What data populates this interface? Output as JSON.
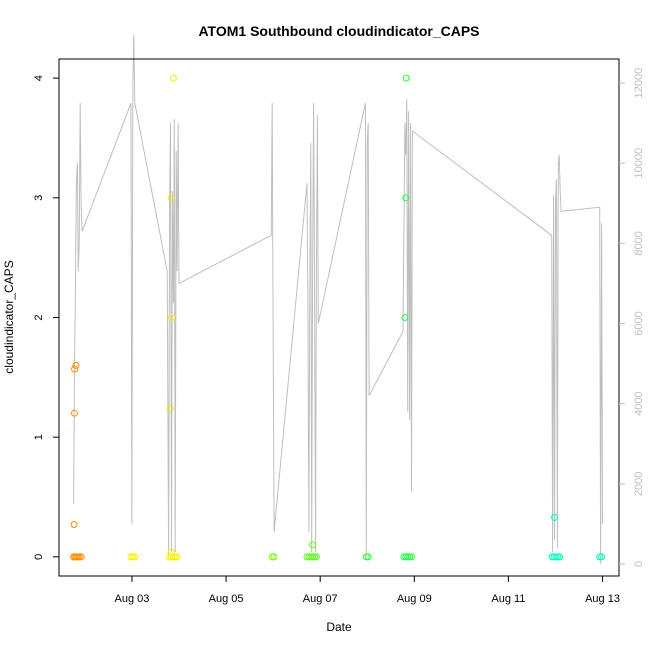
{
  "chart_data": {
    "type": "scatter",
    "title": "ATOM1 Southbound cloudindicator_CAPS",
    "xlabel": "Date",
    "ylabel": "cloudindicator_CAPS",
    "x_ticks": [
      "Aug 03",
      "Aug 05",
      "Aug 07",
      "Aug 09",
      "Aug 11",
      "Aug 13"
    ],
    "x_tick_days": [
      3,
      5,
      7,
      9,
      11,
      13
    ],
    "xlim": [
      1.45,
      13.35
    ],
    "ylim": [
      -0.16,
      4.16
    ],
    "y_ticks": [
      0,
      1,
      2,
      3,
      4
    ],
    "y2lim": [
      -300,
      12600
    ],
    "y2_ticks": [
      0,
      2000,
      4000,
      6000,
      8000,
      10000,
      12000
    ],
    "grid": false,
    "points": [
      {
        "x": 1.76,
        "y": 0,
        "color": "#ff8c00"
      },
      {
        "x": 1.79,
        "y": 0,
        "color": "#ff8c00"
      },
      {
        "x": 1.82,
        "y": 0,
        "color": "#ff8c00"
      },
      {
        "x": 1.85,
        "y": 0,
        "color": "#ff8c00"
      },
      {
        "x": 1.88,
        "y": 0,
        "color": "#ff8c00"
      },
      {
        "x": 1.92,
        "y": 0,
        "color": "#ff8c00"
      },
      {
        "x": 1.77,
        "y": 0.27,
        "color": "#ff8c00"
      },
      {
        "x": 1.78,
        "y": 1.2,
        "color": "#ff8c00"
      },
      {
        "x": 1.78,
        "y": 1.57,
        "color": "#ff8c00"
      },
      {
        "x": 1.81,
        "y": 1.6,
        "color": "#ff8c00"
      },
      {
        "x": 2.98,
        "y": 0,
        "color": "#f5f000"
      },
      {
        "x": 3.02,
        "y": 0,
        "color": "#f5f000"
      },
      {
        "x": 3.06,
        "y": 0,
        "color": "#f5f000"
      },
      {
        "x": 3.8,
        "y": 0,
        "color": "#f5f000"
      },
      {
        "x": 3.84,
        "y": 0,
        "color": "#f5f000"
      },
      {
        "x": 3.88,
        "y": 0,
        "color": "#f5f000"
      },
      {
        "x": 3.92,
        "y": 0,
        "color": "#f5f000"
      },
      {
        "x": 3.96,
        "y": 0,
        "color": "#f5f000"
      },
      {
        "x": 3.83,
        "y": 0.04,
        "color": "#f5f000"
      },
      {
        "x": 3.81,
        "y": 1.24,
        "color": "#f5f000"
      },
      {
        "x": 3.84,
        "y": 2.0,
        "color": "#f5f000"
      },
      {
        "x": 3.83,
        "y": 3.0,
        "color": "#f5f000"
      },
      {
        "x": 3.88,
        "y": 4.0,
        "color": "#f5f000"
      },
      {
        "x": 5.98,
        "y": 0,
        "color": "#7fff00"
      },
      {
        "x": 6.02,
        "y": 0,
        "color": "#7fff00"
      },
      {
        "x": 6.72,
        "y": 0,
        "color": "#5aff1a"
      },
      {
        "x": 6.76,
        "y": 0,
        "color": "#5aff1a"
      },
      {
        "x": 6.8,
        "y": 0,
        "color": "#5aff1a"
      },
      {
        "x": 6.84,
        "y": 0,
        "color": "#5aff1a"
      },
      {
        "x": 6.88,
        "y": 0,
        "color": "#5aff1a"
      },
      {
        "x": 6.92,
        "y": 0,
        "color": "#5aff1a"
      },
      {
        "x": 6.84,
        "y": 0.1,
        "color": "#5aff1a"
      },
      {
        "x": 7.98,
        "y": 0,
        "color": "#33ff33"
      },
      {
        "x": 8.02,
        "y": 0,
        "color": "#33ff33"
      },
      {
        "x": 8.78,
        "y": 0,
        "color": "#22ff44"
      },
      {
        "x": 8.82,
        "y": 0,
        "color": "#22ff44"
      },
      {
        "x": 8.86,
        "y": 0,
        "color": "#22ff44"
      },
      {
        "x": 8.9,
        "y": 0,
        "color": "#22ff44"
      },
      {
        "x": 8.94,
        "y": 0,
        "color": "#22ff44"
      },
      {
        "x": 8.8,
        "y": 2.0,
        "color": "#22ff44"
      },
      {
        "x": 8.82,
        "y": 3.0,
        "color": "#22ff44"
      },
      {
        "x": 8.83,
        "y": 4.0,
        "color": "#22ff44"
      },
      {
        "x": 11.93,
        "y": 0,
        "color": "#00ffc0"
      },
      {
        "x": 11.97,
        "y": 0,
        "color": "#00ffc0"
      },
      {
        "x": 12.01,
        "y": 0,
        "color": "#00ffc0"
      },
      {
        "x": 12.05,
        "y": 0,
        "color": "#00ffc0"
      },
      {
        "x": 12.09,
        "y": 0,
        "color": "#00ffc0"
      },
      {
        "x": 11.98,
        "y": 0.33,
        "color": "#00ffc0"
      },
      {
        "x": 12.94,
        "y": 0,
        "color": "#00ffc8"
      },
      {
        "x": 12.98,
        "y": 0,
        "color": "#00ffc8"
      }
    ],
    "secondary_line": {
      "color": "#bebebe",
      "x": [
        1.76,
        1.78,
        1.8,
        1.82,
        1.84,
        1.86,
        1.88,
        1.9,
        1.92,
        1.94,
        2.98,
        3.0,
        3.02,
        3.04,
        3.06,
        3.75,
        3.78,
        3.8,
        3.82,
        3.84,
        3.86,
        3.88,
        3.9,
        3.92,
        3.94,
        3.96,
        3.98,
        4.0,
        5.96,
        5.98,
        6.0,
        6.02,
        6.72,
        6.74,
        6.76,
        6.78,
        6.8,
        6.82,
        6.84,
        6.86,
        6.88,
        6.9,
        6.92,
        6.94,
        6.96,
        7.96,
        7.98,
        8.0,
        8.02,
        8.04,
        8.76,
        8.78,
        8.8,
        8.82,
        8.84,
        8.86,
        8.88,
        8.9,
        8.92,
        8.94,
        8.96,
        11.92,
        11.94,
        11.96,
        11.98,
        12.0,
        12.02,
        12.04,
        12.06,
        12.08,
        12.1,
        12.12,
        12.94,
        12.96,
        12.98,
        13.0
      ],
      "y": [
        1500,
        5000,
        7000,
        9500,
        10000,
        7300,
        8000,
        11500,
        9000,
        8300,
        11500,
        1000,
        12000,
        13200,
        11500,
        7300,
        200,
        9000,
        11000,
        300,
        9300,
        6500,
        11100,
        300,
        10300,
        7300,
        11000,
        7000,
        8200,
        11500,
        6000,
        800,
        9500,
        6500,
        800,
        7000,
        10500,
        300,
        7300,
        11500,
        7300,
        300,
        7300,
        11200,
        6000,
        11500,
        200,
        10500,
        11000,
        4200,
        5800,
        8300,
        11000,
        10200,
        11600,
        3800,
        11300,
        3600,
        11000,
        1800,
        10800,
        8200,
        300,
        9200,
        600,
        9000,
        9600,
        400,
        10000,
        10200,
        9300,
        8800,
        8900,
        0,
        8500,
        1000
      ]
    }
  }
}
